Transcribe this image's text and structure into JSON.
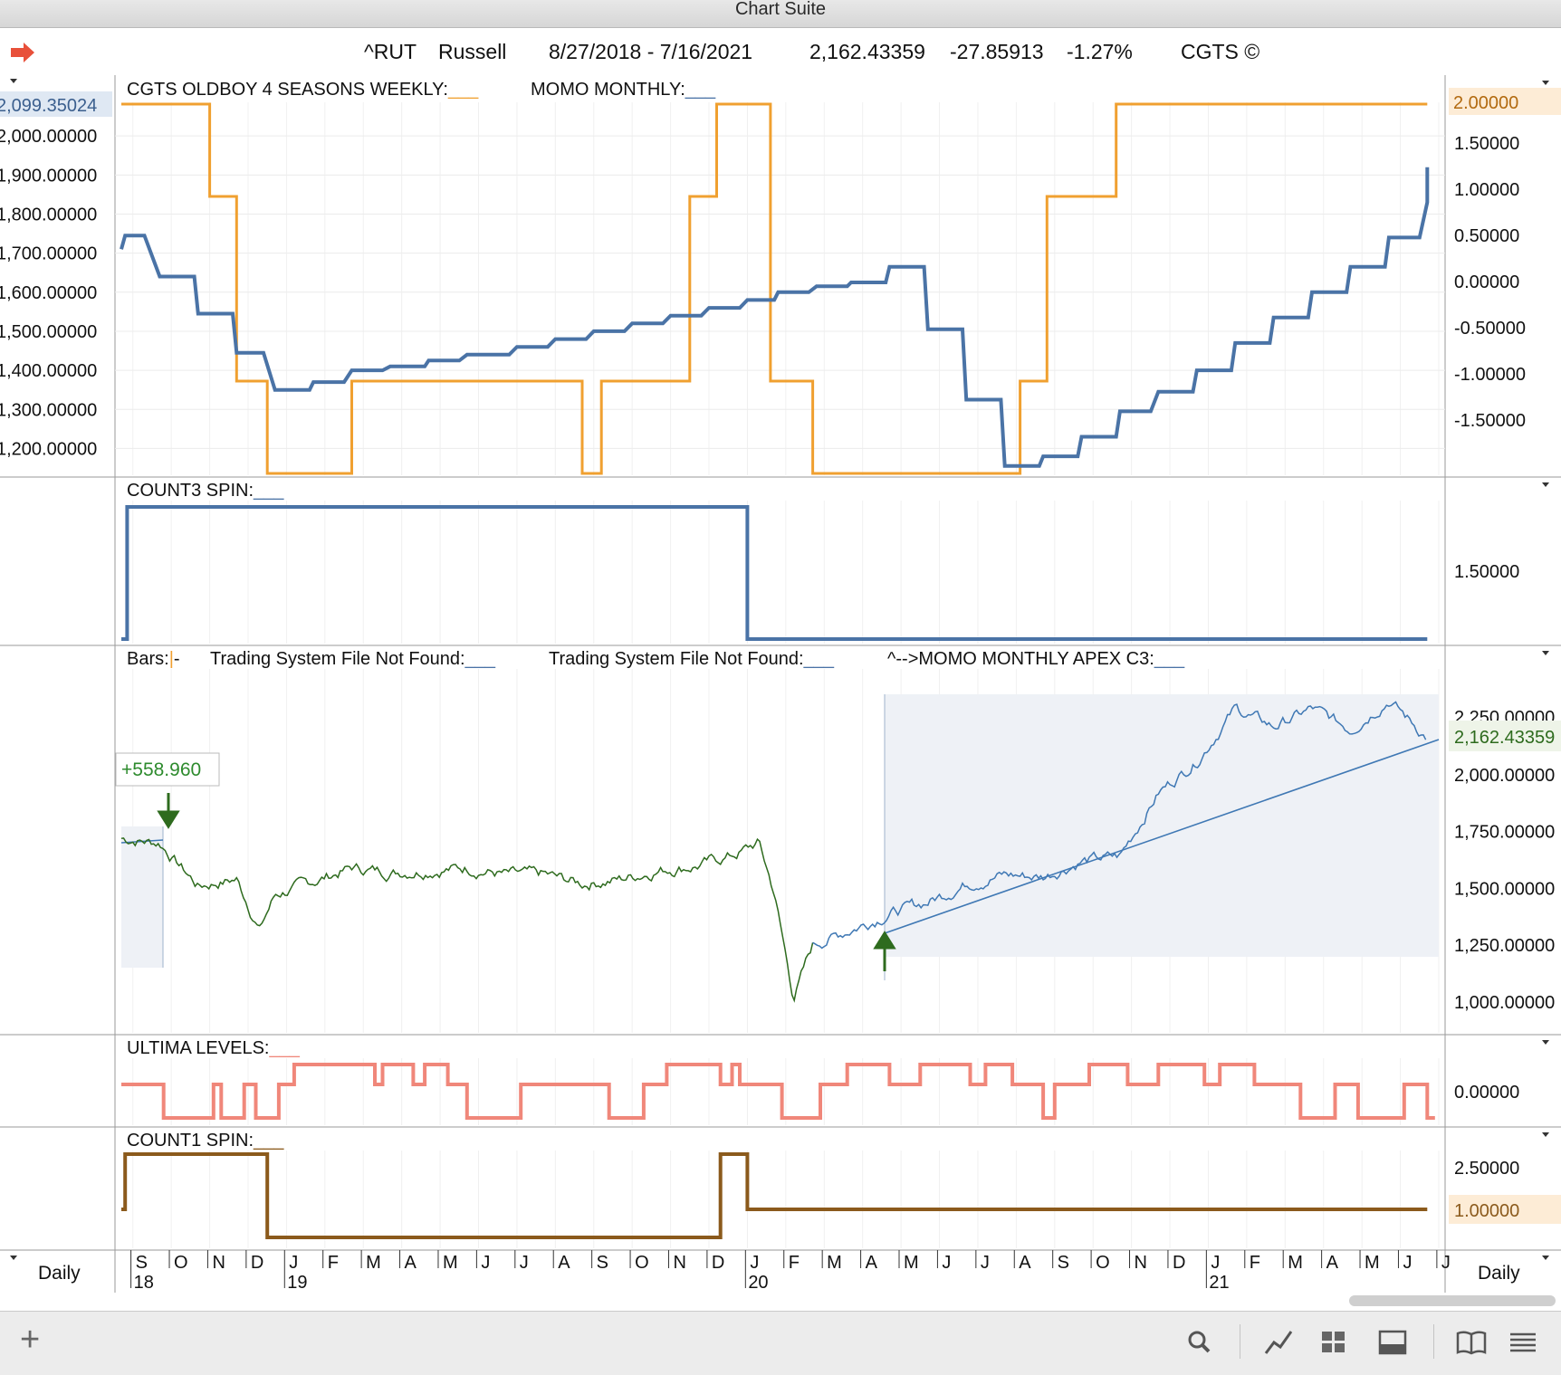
{
  "window": {
    "title": "Chart Suite"
  },
  "header": {
    "symbol": "^RUT",
    "name": "Russell",
    "date_range": "8/27/2018 - 7/16/2021",
    "last": "2,162.43359",
    "change": "-27.85913",
    "change_pct": "-1.27%",
    "brand": "CGTS ©"
  },
  "panes": {
    "p1": {
      "legend1": "CGTS OLDBOY 4 SEASONS WEEKLY",
      "legend2": "MOMO MONTHLY",
      "left_axis": [
        "2,000.00000",
        "1,900.00000",
        "1,800.00000",
        "1,700.00000",
        "1,600.00000",
        "1,500.00000",
        "1,400.00000",
        "1,300.00000",
        "1,200.00000"
      ],
      "left_highlight": "2,099.35024",
      "right_axis": [
        "1.50000",
        "1.00000",
        "0.50000",
        "0.00000",
        "-0.50000",
        "-1.00000",
        "-1.50000"
      ],
      "right_highlight": "2.00000"
    },
    "p2": {
      "legend": "COUNT3 SPIN",
      "right_axis": [
        "1.50000"
      ]
    },
    "p3": {
      "legend1": "Bars:",
      "legend2": "Trading System File Not Found",
      "legend3": "Trading System File Not Found",
      "legend4": "^-->MOMO MONTHLY APEX C3",
      "right_axis": [
        "2,000.00000",
        "1,750.00000",
        "1,500.00000",
        "1,250.00000",
        "1,000.00000"
      ],
      "top_clipped_label": "2,250.00000",
      "price_highlight": "2,162.43359",
      "trade_label": "+558.960"
    },
    "p4": {
      "legend": "ULTIMA LEVELS",
      "right_axis": [
        "0.00000"
      ]
    },
    "p5": {
      "legend": "COUNT1 SPIN",
      "right_axis": [
        "2.50000"
      ],
      "right_highlight": "1.00000"
    }
  },
  "xaxis": {
    "months": [
      "S",
      "O",
      "N",
      "D",
      "J",
      "F",
      "M",
      "A",
      "M",
      "J",
      "J",
      "A",
      "S",
      "O",
      "N",
      "D",
      "J",
      "F",
      "M",
      "A",
      "M",
      "J",
      "J",
      "A",
      "S",
      "O",
      "N",
      "D",
      "J",
      "F",
      "M",
      "A",
      "M",
      "J",
      "J"
    ],
    "years": [
      {
        "label": "18",
        "index": 0
      },
      {
        "label": "19",
        "index": 4
      },
      {
        "label": "20",
        "index": 16
      },
      {
        "label": "21",
        "index": 28
      }
    ]
  },
  "period": {
    "left": "Daily",
    "right": "Daily"
  },
  "colors": {
    "orange": "#f0a030",
    "blue": "#4a73a6",
    "green": "#2e6b1e",
    "price_blue": "#3f78b4",
    "salmon": "#f0877a",
    "brown": "#8b5a1c",
    "gain": "#2e8b2e"
  },
  "chart_data": [
    {
      "type": "line",
      "title": "CGTS OLDBOY 4 SEASONS WEEKLY",
      "x_unit": "month index from Sep 2018 (0) to Jul 2021 (34)",
      "y_range": [
        1150,
        2100
      ],
      "series": [
        {
          "name": "CGTS OLDBOY 4 SEASONS WEEKLY",
          "x": [
            0,
            0.1,
            0.6,
            1.0,
            1.9,
            2.0,
            2.9,
            3.0,
            3.1,
            3.7,
            4.0,
            4.9,
            5.0,
            5.8,
            6.0,
            6.8,
            7.0,
            7.9,
            8.0,
            8.8,
            9.0,
            10.1,
            10.3,
            11.1,
            11.3,
            12.1,
            12.3,
            13.1,
            13.3,
            14.1,
            14.3,
            15.1,
            15.3,
            16.1,
            16.3,
            17.0,
            17.1,
            17.9,
            18.1,
            18.9,
            19.0,
            19.9,
            20.0,
            20.9,
            21.0,
            21.9,
            22.0,
            22.9,
            23.0,
            23.9,
            24.0,
            24.9,
            25.0,
            25.9,
            26.0,
            26.8,
            27.0,
            27.9,
            28.0,
            28.9,
            29.0,
            29.9,
            30.0,
            30.9,
            31.0,
            31.9,
            32.0,
            32.9,
            33.0,
            33.8,
            34.0,
            34.0
          ],
          "y": [
            1710,
            1745,
            1745,
            1640,
            1640,
            1545,
            1545,
            1445,
            1445,
            1445,
            1350,
            1350,
            1370,
            1370,
            1400,
            1400,
            1410,
            1410,
            1425,
            1425,
            1440,
            1440,
            1460,
            1460,
            1480,
            1480,
            1500,
            1500,
            1520,
            1520,
            1540,
            1540,
            1560,
            1560,
            1580,
            1580,
            1600,
            1600,
            1615,
            1615,
            1625,
            1625,
            1665,
            1665,
            1505,
            1505,
            1325,
            1325,
            1155,
            1155,
            1180,
            1180,
            1230,
            1230,
            1295,
            1295,
            1345,
            1345,
            1400,
            1400,
            1470,
            1470,
            1535,
            1535,
            1600,
            1600,
            1665,
            1665,
            1740,
            1740,
            1830,
            1920
          ]
        },
        {
          "name": "MOMO MONTHLY",
          "x": [
            0,
            2.3,
            2.3,
            3.0,
            3.0,
            3.8,
            3.8,
            6.0,
            6.0,
            12.0,
            12.0,
            12.5,
            12.5,
            14.8,
            14.8,
            15.5,
            15.5,
            16.9,
            16.9,
            18.0,
            18.0,
            23.4,
            23.4,
            24.1,
            24.1,
            25.9,
            25.9,
            34
          ],
          "y": [
            2,
            2,
            1.0,
            1.0,
            -1.0,
            -1.0,
            -2.0,
            -2.0,
            -1.0,
            -1.0,
            -2.0,
            -2.0,
            -1.0,
            -1.0,
            1.0,
            1.0,
            2,
            2,
            -1.0,
            -1.0,
            -2.0,
            -2.0,
            -1.0,
            -1.0,
            1.0,
            1.0,
            2,
            2
          ]
        }
      ]
    },
    {
      "type": "line",
      "title": "COUNT3 SPIN",
      "series": [
        {
          "name": "COUNT3 SPIN",
          "x": [
            0,
            0.15,
            0.15,
            16.3,
            16.3,
            34
          ],
          "y": [
            0,
            0,
            2,
            2,
            0,
            0
          ]
        }
      ]
    },
    {
      "type": "line",
      "title": "^RUT Russell daily",
      "y_range": [
        1000,
        2250
      ],
      "series": [
        {
          "name": "^RUT",
          "x": [
            0,
            1,
            2,
            3,
            3.6,
            4,
            5,
            6,
            7,
            8,
            9,
            10,
            11,
            12,
            13,
            14,
            15,
            16,
            16.6,
            17.0,
            17.5,
            18,
            19,
            20,
            21,
            22,
            23,
            24,
            25,
            26,
            27,
            28,
            29,
            30,
            31,
            32,
            33,
            34
          ],
          "y": [
            1720,
            1700,
            1510,
            1540,
            1320,
            1470,
            1530,
            1590,
            1570,
            1580,
            1590,
            1560,
            1560,
            1520,
            1540,
            1580,
            1600,
            1650,
            1700,
            1480,
            1020,
            1250,
            1320,
            1390,
            1440,
            1520,
            1560,
            1550,
            1620,
            1640,
            1920,
            2060,
            2290,
            2210,
            2290,
            2200,
            2330,
            2162
          ]
        }
      ]
    },
    {
      "type": "line",
      "title": "ULTIMA LEVELS",
      "series": [
        {
          "name": "ULTIMA LEVELS",
          "note": "step series between -1 and 1"
        }
      ]
    },
    {
      "type": "line",
      "title": "COUNT1 SPIN",
      "series": [
        {
          "name": "COUNT1 SPIN",
          "x": [
            0,
            0.1,
            0.1,
            3.8,
            3.8,
            15.6,
            15.6,
            16.3,
            16.3,
            34
          ],
          "y": [
            1,
            1,
            3,
            3,
            0,
            0,
            3,
            3,
            1,
            1
          ]
        }
      ]
    }
  ],
  "toolbar": {
    "add_label": "+"
  }
}
